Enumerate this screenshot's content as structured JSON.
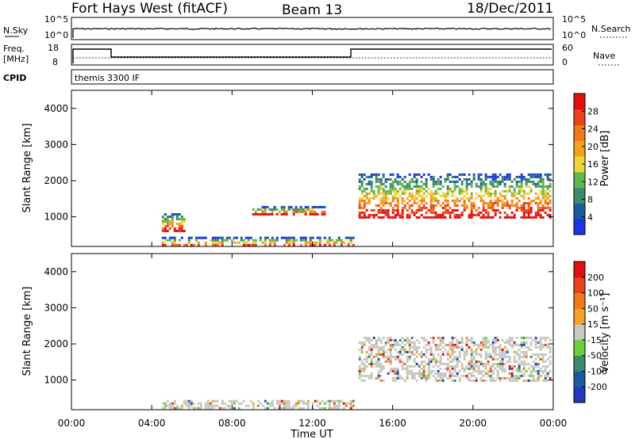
{
  "header": {
    "radar": "Fort Hays West (fitACF)",
    "beam": "Beam 13",
    "date": "18/Dec/2011"
  },
  "noise_panel": {
    "left_label": "N.Sky",
    "left_ticks": [
      "10^5",
      "10^0"
    ],
    "right_label": "N.Search",
    "right_ticks": [
      "10^5",
      "10^0"
    ]
  },
  "freq_panel": {
    "left_label_top": "Freq.",
    "left_label_bottom": "[MHz]",
    "left_ticks": [
      "18",
      "8"
    ],
    "right_label": "Nave",
    "right_ticks": [
      "60",
      "0"
    ]
  },
  "cpid": {
    "label": "CPID",
    "value": "themis 3300 IF"
  },
  "chart_data": [
    {
      "type": "heatmap",
      "name": "power",
      "ylabel": "Slant Range [km]",
      "xlabel": "",
      "yticks": [
        "1000",
        "2000",
        "3000",
        "4000"
      ],
      "ylim": [
        180,
        4500
      ],
      "xlim": [
        0,
        24
      ],
      "xticks": [
        "00:00",
        "04:00",
        "08:00",
        "12:00",
        "16:00",
        "20:00",
        "00:00"
      ],
      "colorbar": {
        "label": "Power [dB]",
        "ticks": [
          "4",
          "8",
          "12",
          "16",
          "20",
          "24",
          "28"
        ],
        "colors": [
          "#1a34e6",
          "#1b5a9c",
          "#3f8a6b",
          "#5fb84a",
          "#f0d23a",
          "#f4a21e",
          "#ef7a1a",
          "#e8431a",
          "#e01010"
        ]
      },
      "features": [
        {
          "desc": "ground scatter band",
          "t_start": 4.5,
          "t_end": 14.0,
          "range_low": 200,
          "range_high": 450
        },
        {
          "desc": "short range patch",
          "t_start": 4.5,
          "t_end": 5.6,
          "range_low": 600,
          "range_high": 1100
        },
        {
          "desc": "mid range echoes",
          "t_start": 9.0,
          "t_end": 12.6,
          "range_low": 1100,
          "range_high": 1300
        },
        {
          "desc": "main ionospheric scatter",
          "t_start": 14.3,
          "t_end": 23.8,
          "range_low": 1000,
          "range_high": 2200,
          "peak_db": 28
        }
      ]
    },
    {
      "type": "heatmap",
      "name": "velocity",
      "ylabel": "Slant Range [km]",
      "xlabel": "Time UT",
      "yticks": [
        "1000",
        "2000",
        "3000",
        "4000"
      ],
      "ylim": [
        180,
        4500
      ],
      "xlim": [
        0,
        24
      ],
      "xticks": [
        "00:00",
        "04:00",
        "08:00",
        "12:00",
        "16:00",
        "20:00",
        "00:00"
      ],
      "colorbar": {
        "label": "Velocity [m s⁻¹]",
        "ticks": [
          "200",
          "100",
          "50",
          "15",
          "-15",
          "-50",
          "-100",
          "-200"
        ],
        "colors": [
          "#2438b8",
          "#1b5a9c",
          "#3f8a6b",
          "#6ad03a",
          "#c8c8c0",
          "#f0a22a",
          "#f07a1a",
          "#e8431a",
          "#e01010"
        ]
      },
      "features": [
        {
          "desc": "ground scatter band",
          "t_start": 4.5,
          "t_end": 14.0,
          "range_low": 200,
          "range_high": 450,
          "velocity": -40
        },
        {
          "desc": "main ionospheric scatter",
          "t_start": 14.3,
          "t_end": 23.8,
          "range_low": 1000,
          "range_high": 2200,
          "velocity": 0
        }
      ]
    }
  ]
}
